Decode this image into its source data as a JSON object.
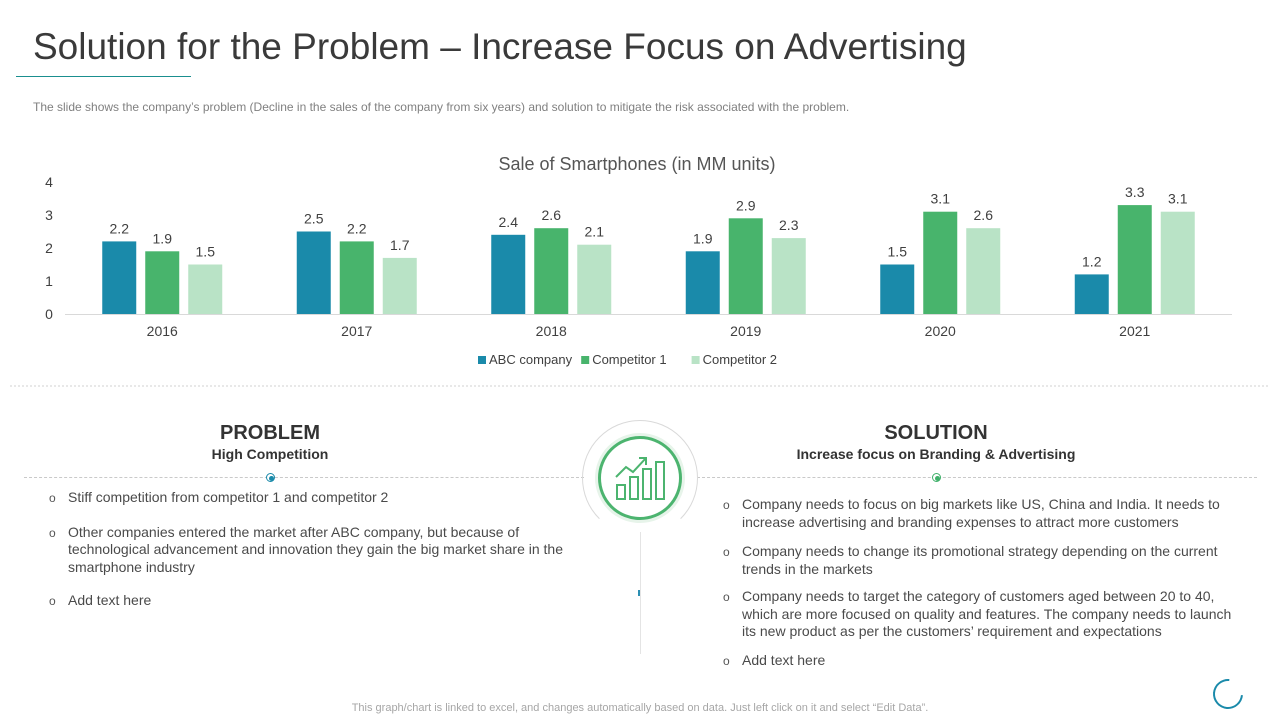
{
  "slide": {
    "title": "Solution for the Problem – Increase Focus on Advertising",
    "subtitle": "The slide shows the company’s problem (Decline in the sales of the company from six years) and solution to mitigate the risk associated with the problem.",
    "footer": "This graph/chart is linked to excel, and changes automatically based on data. Just left click on it and select “Edit Data”."
  },
  "chart_data": {
    "type": "bar",
    "title": "Sale of Smartphones (in MM units)",
    "xlabel": "",
    "ylabel": "",
    "ylim": [
      0,
      4
    ],
    "yticks": [
      0,
      1,
      2,
      3,
      4
    ],
    "categories": [
      "2016",
      "2017",
      "2018",
      "2019",
      "2020",
      "2021"
    ],
    "series": [
      {
        "name": "ABC company",
        "color": "#1a8aaa",
        "values": [
          2.2,
          2.5,
          2.4,
          1.9,
          1.5,
          1.2
        ]
      },
      {
        "name": "Competitor 1",
        "color": "#48b46c",
        "values": [
          1.9,
          2.2,
          2.6,
          2.9,
          3.1,
          3.3
        ]
      },
      {
        "name": "Competitor 2",
        "color": "#b9e3c6",
        "values": [
          1.5,
          1.7,
          2.1,
          2.3,
          2.6,
          3.1
        ]
      }
    ],
    "legend_position": "bottom"
  },
  "problem": {
    "heading": "PROBLEM",
    "subheading": "High Competition",
    "items": [
      "Stiff competition from competitor 1 and competitor 2",
      "Other companies entered the market after ABC company, but because of technological advancement and innovation they gain the big market share in the smartphone industry",
      "Add text here"
    ]
  },
  "solution": {
    "heading": "SOLUTION",
    "subheading": "Increase focus on Branding & Advertising",
    "items": [
      "Company needs to focus on big markets like US, China and India. It needs to increase advertising and branding expenses to attract more customers",
      "Company needs to change its promotional strategy depending on the current trends in the markets",
      "Company needs to target the category of customers aged between 20 to 40, which are more focused on quality and features. The company needs to launch its new product as per the customers’ requirement and expectations",
      "Add text here"
    ]
  },
  "icons": {
    "center": "growth-chart-icon",
    "corner": "circle-outline-icon"
  }
}
